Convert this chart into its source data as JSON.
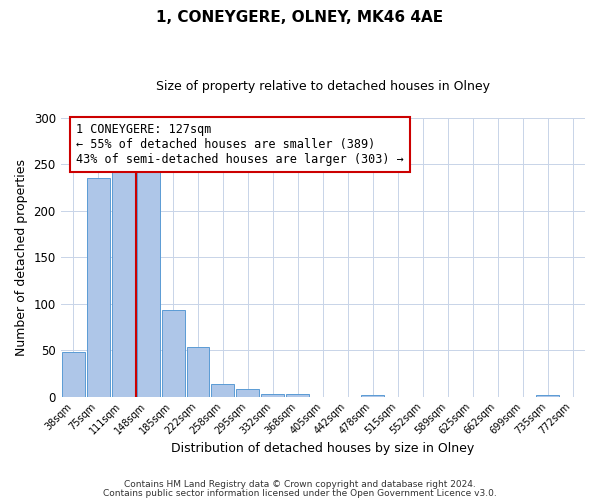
{
  "title": "1, CONEYGERE, OLNEY, MK46 4AE",
  "subtitle": "Size of property relative to detached houses in Olney",
  "xlabel": "Distribution of detached houses by size in Olney",
  "ylabel": "Number of detached properties",
  "bin_labels": [
    "38sqm",
    "75sqm",
    "111sqm",
    "148sqm",
    "185sqm",
    "222sqm",
    "258sqm",
    "295sqm",
    "332sqm",
    "368sqm",
    "405sqm",
    "442sqm",
    "478sqm",
    "515sqm",
    "552sqm",
    "589sqm",
    "625sqm",
    "662sqm",
    "699sqm",
    "735sqm",
    "772sqm"
  ],
  "bar_values": [
    48,
    235,
    250,
    250,
    93,
    53,
    14,
    8,
    3,
    3,
    0,
    0,
    2,
    0,
    0,
    0,
    0,
    0,
    0,
    2,
    0
  ],
  "bar_color": "#aec6e8",
  "bar_edge_color": "#5b9bd5",
  "marker_label": "1 CONEYGERE: 127sqm",
  "marker_line_color": "#cc0000",
  "annotation_line1": "← 55% of detached houses are smaller (389)",
  "annotation_line2": "43% of semi-detached houses are larger (303) →",
  "box_edge_color": "#cc0000",
  "ylim": [
    0,
    300
  ],
  "yticks": [
    0,
    50,
    100,
    150,
    200,
    250,
    300
  ],
  "footer1": "Contains HM Land Registry data © Crown copyright and database right 2024.",
  "footer2": "Contains public sector information licensed under the Open Government Licence v3.0.",
  "background_color": "#ffffff",
  "grid_color": "#c8d4e8"
}
